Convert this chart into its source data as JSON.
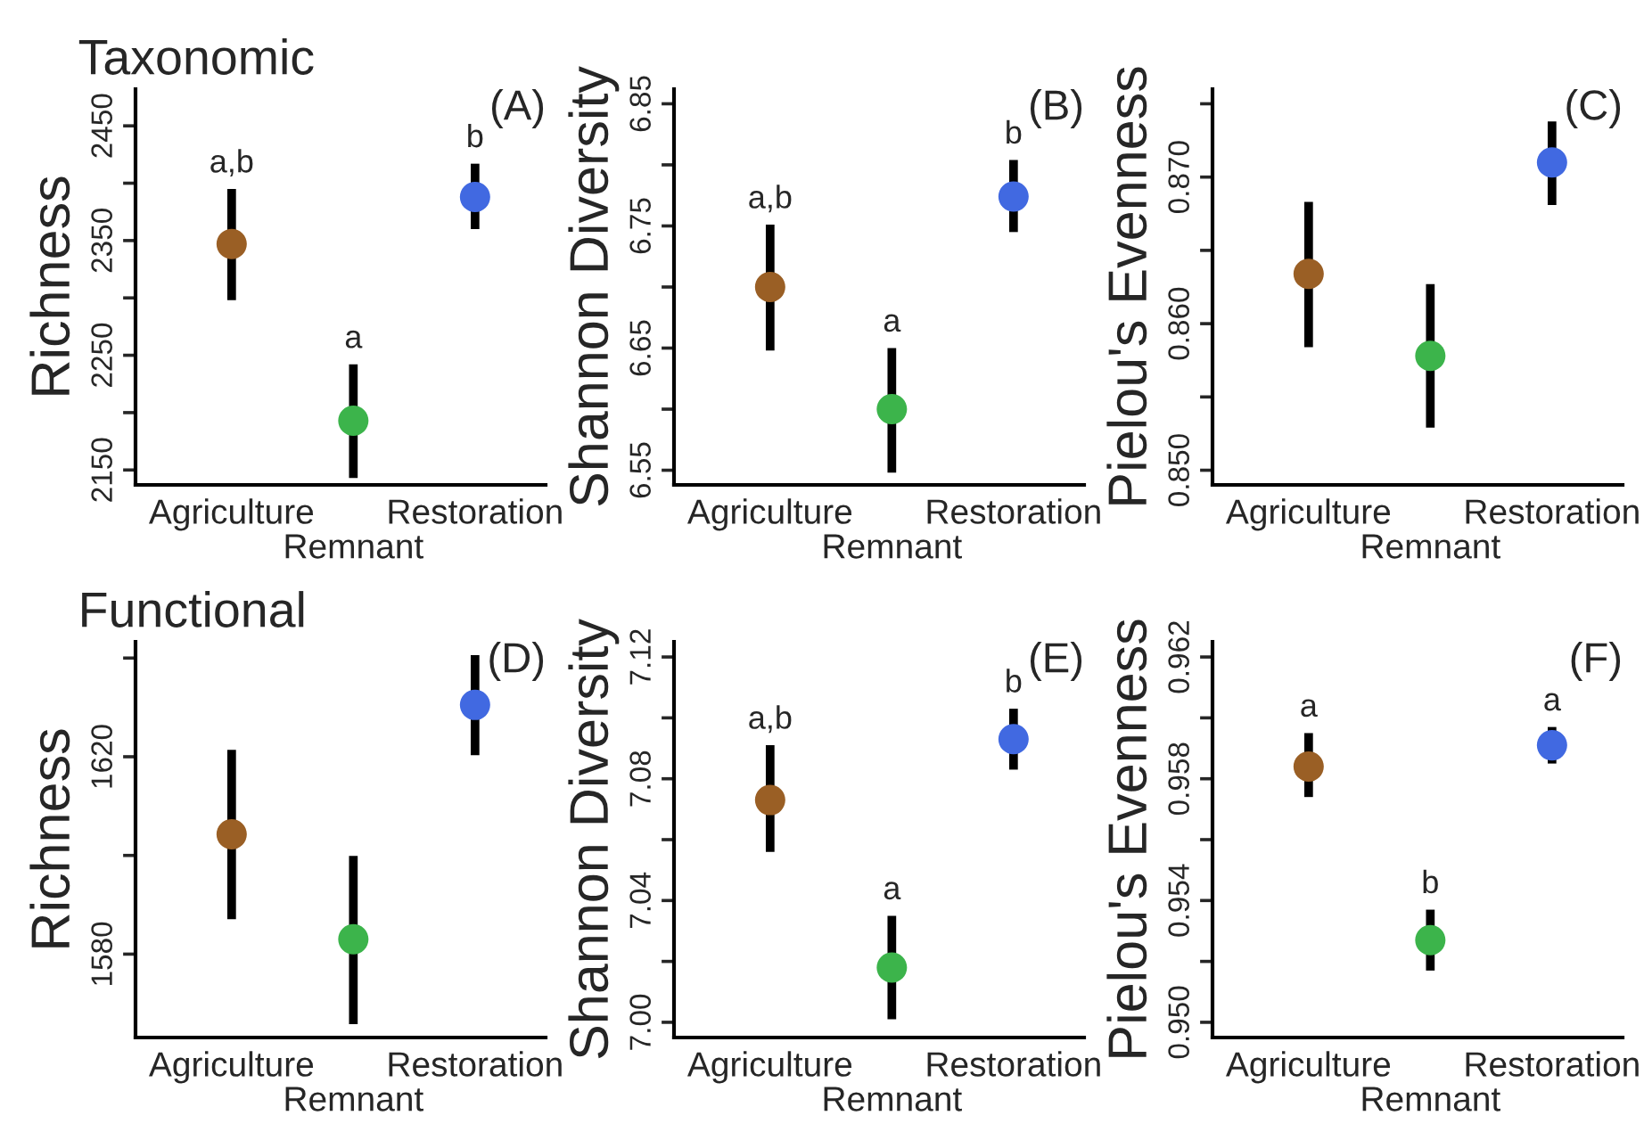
{
  "chart_data": [
    {
      "type": "scatter",
      "title": "Taxonomic",
      "ylabel": "Richness",
      "marker": "circle",
      "categories": [
        "Agriculture",
        "Remnant",
        "Restoration"
      ],
      "values": [
        2347,
        2193,
        2388
      ],
      "colors": [
        "#9a5f25",
        "#3cb44b",
        "#4169e1"
      ],
      "errors": [
        [
          2298,
          2395
        ],
        [
          2143,
          2242
        ],
        [
          2360,
          2417
        ]
      ],
      "ylim": [
        2137,
        2482
      ],
      "yticks": [
        2150,
        {
          "value": 2200,
          "label": null
        },
        2250,
        {
          "value": 2300,
          "label": null
        },
        2350,
        {
          "value": 2400,
          "label": null
        },
        2450
      ],
      "annotations": [
        "(A)",
        {
          "text": "a,b",
          "x": "Agriculture",
          "y": 2395
        },
        {
          "text": "a",
          "x": "Remnant",
          "y": 2242
        },
        {
          "text": "b",
          "x": "Restoration",
          "y": 2417
        }
      ]
    },
    {
      "type": "scatter",
      "ylabel": "Shannon Diversity",
      "marker": "circle",
      "categories": [
        "Agriculture",
        "Remnant",
        "Restoration"
      ],
      "values": [
        6.7,
        6.6,
        6.774
      ],
      "colors": [
        "#9a5f25",
        "#3cb44b",
        "#4169e1"
      ],
      "errors": [
        [
          6.648,
          6.751
        ],
        [
          6.548,
          6.65
        ],
        [
          6.745,
          6.804
        ]
      ],
      "ylim": [
        6.538,
        6.862
      ],
      "yticks": [
        {
          "value": 6.55,
          "label": "6.55"
        },
        {
          "value": 6.6,
          "label": null
        },
        {
          "value": 6.65,
          "label": "6.65"
        },
        {
          "value": 6.7,
          "label": null
        },
        {
          "value": 6.75,
          "label": "6.75"
        },
        {
          "value": 6.8,
          "label": null
        },
        {
          "value": 6.85,
          "label": "6.85"
        }
      ],
      "annotations": [
        "(B)",
        {
          "text": "a,b",
          "x": "Agriculture",
          "y": 6.751
        },
        {
          "text": "a",
          "x": "Remnant",
          "y": 6.65
        },
        {
          "text": "b",
          "x": "Restoration",
          "y": 6.804
        }
      ]
    },
    {
      "type": "scatter",
      "ylabel": "Pielou's Evenness",
      "marker": "circle",
      "categories": [
        "Agriculture",
        "Remnant",
        "Restoration"
      ],
      "values": [
        0.8634,
        0.8578,
        0.871
      ],
      "colors": [
        "#9a5f25",
        "#3cb44b",
        "#4169e1"
      ],
      "errors": [
        [
          0.8584,
          0.8683
        ],
        [
          0.8529,
          0.8627
        ],
        [
          0.8681,
          0.8738
        ]
      ],
      "ylim": [
        0.849,
        0.876
      ],
      "yticks": [
        {
          "value": 0.85,
          "label": "0.850"
        },
        {
          "value": 0.855,
          "label": null
        },
        {
          "value": 0.86,
          "label": "0.860"
        },
        {
          "value": 0.865,
          "label": null
        },
        {
          "value": 0.87,
          "label": "0.870"
        },
        {
          "value": 0.875,
          "label": null
        }
      ],
      "annotations": [
        "(C)"
      ]
    },
    {
      "type": "scatter",
      "title": "Functional",
      "ylabel": "Richness",
      "marker": "circle",
      "categories": [
        "Agriculture",
        "Remnant",
        "Restoration"
      ],
      "values": [
        1604.3,
        1583.0,
        1630.5
      ],
      "colors": [
        "#9a5f25",
        "#3cb44b",
        "#4169e1"
      ],
      "errors": [
        [
          1587.1,
          1621.4
        ],
        [
          1565.8,
          1599.9
        ],
        [
          1620.3,
          1640.6
        ]
      ],
      "ylim": [
        1563.1,
        1643.3
      ],
      "yticks": [
        1580,
        {
          "value": 1600,
          "label": null
        },
        1620,
        {
          "value": 1640,
          "label": null
        }
      ],
      "annotations": [
        "(D)"
      ]
    },
    {
      "type": "scatter",
      "ylabel": "Shannon Diversity",
      "marker": "circle",
      "categories": [
        "Agriculture",
        "Remnant",
        "Restoration"
      ],
      "values": [
        7.073,
        7.018,
        7.093
      ],
      "colors": [
        "#9a5f25",
        "#3cb44b",
        "#4169e1"
      ],
      "errors": [
        [
          7.056,
          7.091
        ],
        [
          7.001,
          7.035
        ],
        [
          7.083,
          7.103
        ]
      ],
      "ylim": [
        6.995,
        7.125
      ],
      "yticks": [
        {
          "value": 7.0,
          "label": "7.00"
        },
        {
          "value": 7.02,
          "label": null
        },
        {
          "value": 7.04,
          "label": "7.04"
        },
        {
          "value": 7.06,
          "label": null
        },
        {
          "value": 7.08,
          "label": "7.08"
        },
        {
          "value": 7.1,
          "label": null
        },
        {
          "value": 7.12,
          "label": "7.12"
        }
      ],
      "annotations": [
        "(E)",
        {
          "text": "a,b",
          "x": "Agriculture",
          "y": 7.091
        },
        {
          "text": "a",
          "x": "Remnant",
          "y": 7.035
        },
        {
          "text": "b",
          "x": "Restoration",
          "y": 7.103
        }
      ]
    },
    {
      "type": "scatter",
      "ylabel": "Pielou's Evenness",
      "marker": "circle",
      "categories": [
        "Agriculture",
        "Remnant",
        "Restoration"
      ],
      "values": [
        0.9584,
        0.9527,
        0.9591
      ],
      "colors": [
        "#9a5f25",
        "#3cb44b",
        "#4169e1"
      ],
      "errors": [
        [
          0.9574,
          0.9595
        ],
        [
          0.9517,
          0.9537
        ],
        [
          0.9585,
          0.9597
        ]
      ],
      "ylim": [
        0.9495,
        0.9625
      ],
      "yticks": [
        {
          "value": 0.95,
          "label": "0.950"
        },
        {
          "value": 0.952,
          "label": null
        },
        {
          "value": 0.954,
          "label": "0.954"
        },
        {
          "value": 0.956,
          "label": null
        },
        {
          "value": 0.958,
          "label": "0.958"
        },
        {
          "value": 0.96,
          "label": null
        },
        {
          "value": 0.962,
          "label": "0.962"
        }
      ],
      "annotations": [
        "(F)",
        {
          "text": "a",
          "x": "Agriculture",
          "y": 0.9595
        },
        {
          "text": "b",
          "x": "Remnant",
          "y": 0.9537
        },
        {
          "text": "a",
          "x": "Restoration",
          "y": 0.9597
        }
      ]
    }
  ]
}
